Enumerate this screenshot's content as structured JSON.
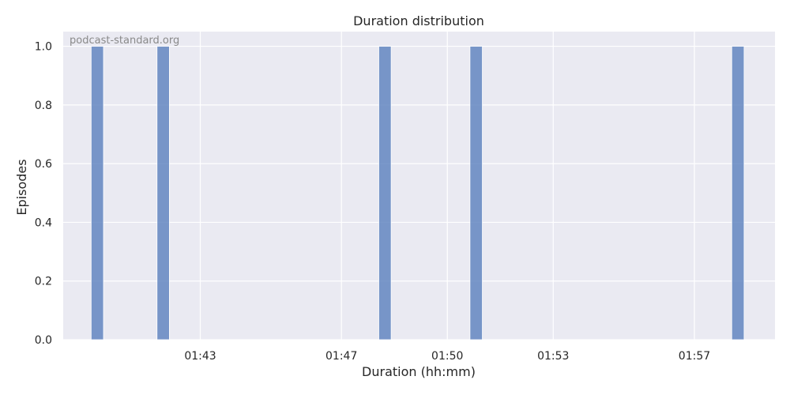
{
  "chart_data": {
    "type": "bar",
    "title": "Duration distribution",
    "xlabel": "Duration (hh:mm)",
    "ylabel": "Episodes",
    "watermark": "podcast-standard.org",
    "x_unit": "hh:mm",
    "x_range": [
      "01:39:07",
      "01:59:17"
    ],
    "ylim": [
      0,
      1.05
    ],
    "grid": true,
    "bar_color": "#5a7fbd",
    "background": "#eaeaf2",
    "bin_width": "00:00:21",
    "bars": [
      {
        "x": "01:40:05",
        "value": 1
      },
      {
        "x": "01:41:57",
        "value": 1
      },
      {
        "x": "01:48:14",
        "value": 1
      },
      {
        "x": "01:50:49",
        "value": 1
      },
      {
        "x": "01:58:14",
        "value": 1
      }
    ],
    "x_ticks": [
      "01:43",
      "01:47",
      "01:50",
      "01:53",
      "01:57"
    ],
    "y_ticks": [
      "0.0",
      "0.2",
      "0.4",
      "0.6",
      "0.8",
      "1.0"
    ]
  }
}
